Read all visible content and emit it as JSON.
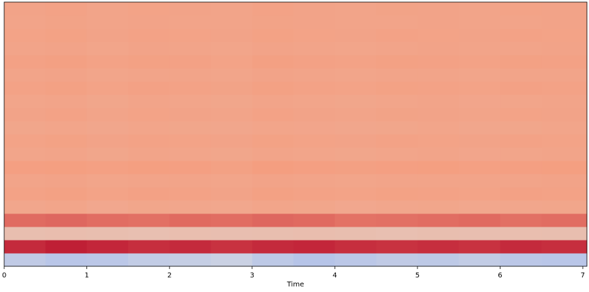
{
  "chart_data": {
    "type": "heatmap",
    "xlabel": "Time",
    "colormap": "coolwarm",
    "zlim": [
      -400,
      400
    ],
    "xlim": [
      0,
      7.05
    ],
    "xticks": [
      0,
      1,
      2,
      3,
      4,
      5,
      6,
      7
    ],
    "bins": [
      0,
      0.5,
      1,
      1.5,
      2,
      2.5,
      3,
      3.5,
      4,
      4.5,
      5,
      5.5,
      6,
      6.5,
      7.05
    ],
    "values": [
      [
        -60,
        -75,
        -70,
        -55,
        -50,
        -40,
        -65,
        -80,
        -70,
        -60,
        -65,
        -55,
        -70,
        -75
      ],
      [
        350,
        365,
        355,
        345,
        350,
        340,
        350,
        355,
        345,
        340,
        345,
        340,
        350,
        345
      ],
      [
        95,
        98,
        95,
        92,
        96,
        94,
        95,
        98,
        95,
        92,
        95,
        94,
        96,
        95
      ],
      [
        265,
        270,
        262,
        258,
        266,
        262,
        270,
        266,
        255,
        258,
        262,
        266,
        258,
        262
      ],
      [
        168,
        172,
        165,
        170,
        168,
        166,
        172,
        170,
        165,
        168,
        170,
        166,
        168,
        170
      ],
      [
        182,
        185,
        180,
        184,
        182,
        178,
        185,
        182,
        180,
        183,
        182,
        180,
        184,
        182
      ],
      [
        175,
        178,
        172,
        176,
        175,
        173,
        178,
        176,
        172,
        175,
        176,
        174,
        175,
        177
      ],
      [
        190,
        192,
        188,
        191,
        190,
        186,
        193,
        190,
        187,
        190,
        191,
        188,
        190,
        192
      ],
      [
        172,
        175,
        170,
        174,
        172,
        170,
        175,
        173,
        170,
        172,
        174,
        171,
        172,
        174
      ],
      [
        180,
        183,
        178,
        182,
        180,
        177,
        183,
        180,
        178,
        181,
        180,
        178,
        182,
        180
      ],
      [
        170,
        173,
        168,
        172,
        170,
        168,
        173,
        171,
        168,
        170,
        172,
        169,
        170,
        172
      ],
      [
        178,
        181,
        176,
        180,
        178,
        175,
        181,
        178,
        176,
        179,
        178,
        176,
        180,
        178
      ],
      [
        172,
        175,
        170,
        174,
        172,
        170,
        175,
        173,
        170,
        172,
        174,
        171,
        172,
        174
      ],
      [
        182,
        185,
        180,
        184,
        182,
        179,
        185,
        182,
        180,
        183,
        182,
        180,
        184,
        182
      ],
      [
        174,
        177,
        172,
        176,
        174,
        172,
        177,
        175,
        172,
        174,
        176,
        173,
        174,
        176
      ],
      [
        184,
        187,
        182,
        186,
        184,
        180,
        187,
        184,
        182,
        185,
        184,
        182,
        186,
        184
      ],
      [
        175,
        178,
        173,
        177,
        175,
        173,
        178,
        176,
        173,
        175,
        177,
        174,
        175,
        177
      ],
      [
        180,
        183,
        178,
        182,
        180,
        177,
        183,
        180,
        178,
        181,
        180,
        178,
        182,
        180
      ],
      [
        176,
        179,
        174,
        178,
        176,
        174,
        179,
        177,
        174,
        176,
        178,
        175,
        176,
        178
      ],
      [
        178,
        181,
        176,
        180,
        178,
        175,
        181,
        178,
        176,
        179,
        178,
        176,
        180,
        178
      ]
    ]
  }
}
